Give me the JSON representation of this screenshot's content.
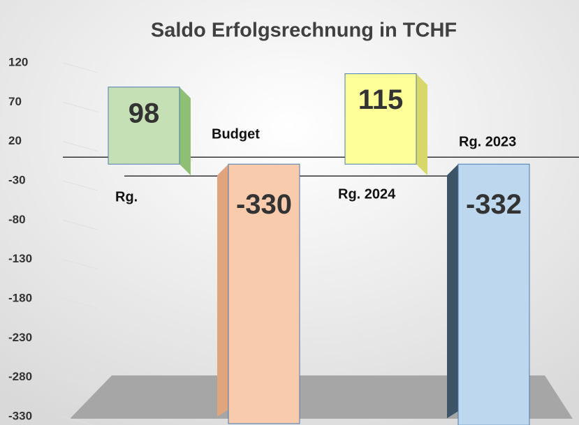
{
  "chart_data": {
    "type": "bar3d",
    "title": "Saldo Erfolgsrechnung in TCHF",
    "categories": [
      "Rg.",
      "Budget",
      "Rg. 2024",
      "Rg. 2023"
    ],
    "values": [
      98,
      -330,
      115,
      -332
    ],
    "colors": [
      "#c5e0b4",
      "#f8cbad",
      "#ffff99",
      "#bdd7ee"
    ],
    "ylim": [
      -330,
      120
    ],
    "yticks": [
      120,
      70,
      20,
      -30,
      -80,
      -130,
      -180,
      -230,
      -280,
      -330
    ]
  }
}
